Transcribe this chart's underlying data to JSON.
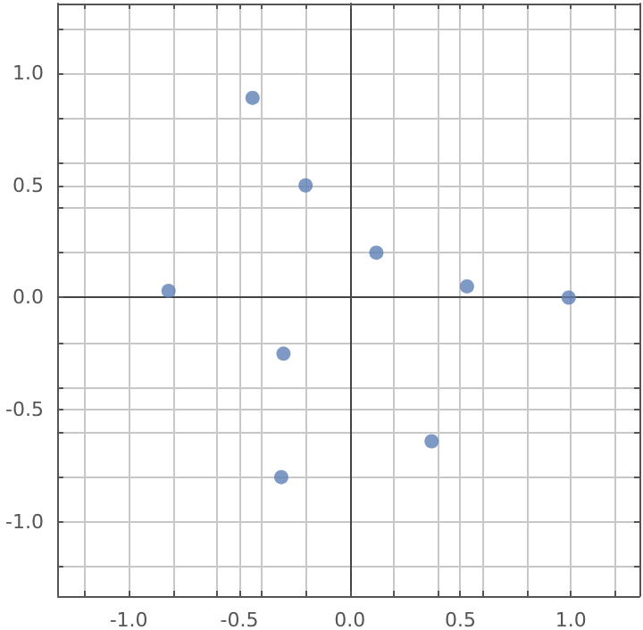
{
  "chart_data": {
    "type": "scatter",
    "marker": "circle",
    "grid": true,
    "x": [
      -0.82,
      -0.44,
      -0.2,
      0.12,
      0.53,
      0.99,
      -0.3,
      -0.31,
      0.37
    ],
    "series": [
      {
        "color": "#5e81b5",
        "values": [
          0.03,
          0.89,
          0.5,
          0.2,
          0.05,
          0,
          -0.25,
          -0.8,
          -0.64
        ]
      }
    ],
    "xlim": [
      -1.32,
      1.31
    ],
    "ylim": [
      -1.33,
      1.31
    ],
    "xticks": [
      {
        "value": -1.2,
        "label": null
      },
      "-1.0",
      {
        "value": -0.8,
        "label": null
      },
      {
        "value": -0.6,
        "label": null
      },
      {
        "value": -0.5,
        "label": "-0.5"
      },
      {
        "value": -0.4,
        "label": null
      },
      {
        "value": -0.2,
        "label": null
      },
      {
        "value": 0,
        "label": "0.0"
      },
      {
        "value": 0.2,
        "label": null
      },
      {
        "value": 0.4,
        "label": null
      },
      {
        "value": 0.5,
        "label": "0.5"
      },
      {
        "value": 0.6,
        "label": null
      },
      {
        "value": 0.8,
        "label": null
      },
      {
        "value": 1,
        "label": "1.0"
      },
      {
        "value": 1.2,
        "label": null
      }
    ],
    "yticks": [
      {
        "value": -1.2,
        "label": null
      },
      {
        "value": -1,
        "label": "-1.0"
      },
      {
        "value": -0.8,
        "label": null
      },
      {
        "value": -0.6,
        "label": null
      },
      {
        "value": -0.5,
        "label": "-0.5"
      },
      {
        "value": -0.4,
        "label": null
      },
      {
        "value": -0.2,
        "label": null
      },
      {
        "value": 0,
        "label": "0.0"
      },
      {
        "value": 0.2,
        "label": null
      },
      {
        "value": 0.4,
        "label": null
      },
      {
        "value": 0.5,
        "label": "0.5"
      },
      {
        "value": 0.6,
        "label": null
      },
      {
        "value": 0.8,
        "label": null
      },
      {
        "value": 1,
        "label": "1.0"
      },
      {
        "value": 1.2,
        "label": null
      }
    ]
  }
}
